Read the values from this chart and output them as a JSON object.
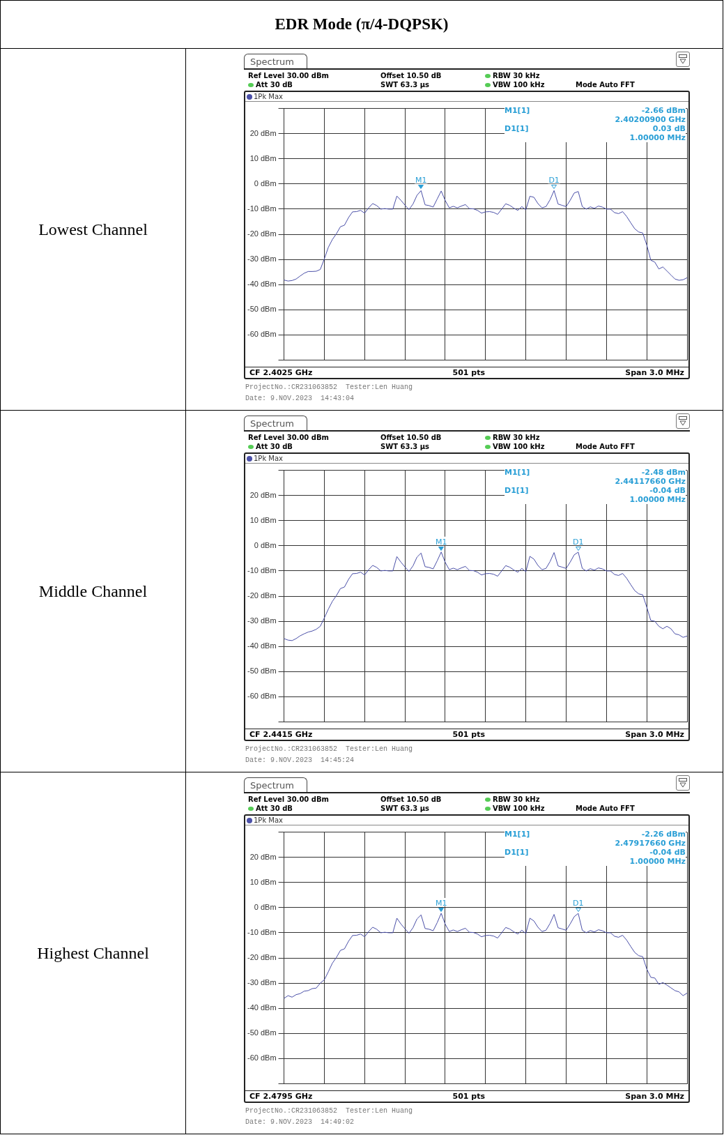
{
  "chart_data": [
    {
      "type": "other",
      "title": "EDR Mode (π/4-DQPSK)"
    },
    {
      "type": "line",
      "title": "Lowest Channel",
      "legend": "top left",
      "grid": true,
      "tick_labels": "y",
      "marker": "none",
      "line_style": "solid",
      "categories": [
        null,
        null,
        null,
        null,
        null,
        null,
        null,
        null,
        null,
        null,
        null,
        null,
        null,
        null,
        null,
        null,
        null,
        null,
        null,
        null,
        null,
        null,
        null,
        null,
        null,
        null,
        null,
        null,
        null,
        null,
        null,
        null,
        null,
        null,
        null,
        null,
        null,
        null,
        null,
        null,
        null,
        null,
        null,
        null,
        null,
        null,
        null,
        null,
        null,
        null,
        null,
        null,
        null,
        null,
        null,
        null,
        null,
        null,
        null,
        null,
        null,
        null,
        null,
        null,
        null,
        null,
        null,
        null,
        null,
        null,
        null,
        null,
        null,
        null,
        null,
        null,
        null,
        null,
        null,
        null,
        null,
        null,
        null,
        null,
        null,
        null,
        null,
        null,
        null,
        null,
        null,
        null,
        null,
        null,
        null,
        null,
        null,
        null,
        null,
        null,
        null
      ],
      "ylim": [
        -70,
        30
      ],
      "yticks": [
        {
          "value": 30,
          "label": null
        },
        {
          "value": 20,
          "label": "20 dBm"
        },
        {
          "value": 10,
          "label": "10 dBm"
        },
        {
          "value": 0,
          "label": "0 dBm"
        },
        {
          "value": -10,
          "label": "-10 dBm"
        },
        {
          "value": -20,
          "label": "-20 dBm"
        },
        {
          "value": -30,
          "label": "-30 dBm"
        },
        {
          "value": -40,
          "label": "-40 dBm"
        },
        {
          "value": -50,
          "label": "-50 dBm"
        },
        {
          "value": -60,
          "label": "-60 dBm"
        },
        {
          "value": -70,
          "label": null
        }
      ],
      "series": [
        {
          "name": "1Pk Max",
          "color": "#4b50a8",
          "values": [
            -38.2,
            -38.6,
            -38.4,
            -37.8,
            -36.6,
            -35.5,
            -34.8,
            -34.8,
            -34.7,
            -34.0,
            -29.8,
            -25.2,
            -22.1,
            -19.8,
            -17.0,
            -16.4,
            -13.4,
            -11.1,
            -11.0,
            -10.5,
            -11.6,
            -9.5,
            -7.8,
            -8.6,
            -10.0,
            -9.8,
            -10.0,
            -10.0,
            -4.8,
            -6.5,
            -8.4,
            -10.2,
            -8.0,
            -4.5,
            -2.66,
            -8.3,
            -8.6,
            -9.2,
            -6.0,
            -2.8,
            -6.6,
            -9.5,
            -8.9,
            -9.5,
            -8.8,
            -8.2,
            -9.8,
            -9.9,
            -10.5,
            -11.6,
            -11.1,
            -11.0,
            -11.3,
            -12.1,
            -10.0,
            -7.9,
            -8.5,
            -9.6,
            -10.5,
            -9.0,
            -10.3,
            -4.9,
            -5.3,
            -7.8,
            -9.5,
            -9.0,
            -6.3,
            -2.63,
            -8.0,
            -8.5,
            -9.0,
            -6.5,
            -3.6,
            -3.0,
            -9.0,
            -10.0,
            -9.1,
            -9.7,
            -8.8,
            -9.2,
            -10.0,
            -10.0,
            -11.4,
            -11.8,
            -11.0,
            -12.9,
            -15.4,
            -17.8,
            -19.1,
            -19.5,
            -24.3,
            -30.3,
            -31.1,
            -33.8,
            -33.0,
            -34.6,
            -36.2,
            -37.8,
            -38.3,
            -38.1,
            -37.3
          ]
        }
      ],
      "annotations": [
        "Spectrum",
        "Ref Level 30.00 dBm",
        "Offset 10.50 dB",
        "RBW 30 kHz",
        "Att 30 dB",
        "SWT 63.3 µs",
        "VBW 100 kHz",
        "Mode Auto FFT",
        "M1[1]",
        "-2.66 dBm",
        "2.40200900 GHz",
        "D1[1]",
        "0.03 dB",
        "1.00000 MHz",
        "CF 2.4025 GHz",
        "501 pts",
        "Span 3.0 MHz",
        "ProjectNo.:CR231063852  Tester:Len Huang",
        "Date: 9.NOV.2023  14:43:04",
        {
          "text": "M1",
          "y": -2.66
        },
        {
          "text": "D1",
          "y": -2.63
        }
      ]
    },
    {
      "type": "line",
      "title": "Middle Channel",
      "legend": "top left",
      "grid": true,
      "tick_labels": "y",
      "marker": "none",
      "line_style": "solid",
      "categories": [
        null,
        null,
        null,
        null,
        null,
        null,
        null,
        null,
        null,
        null,
        null,
        null,
        null,
        null,
        null,
        null,
        null,
        null,
        null,
        null,
        null,
        null,
        null,
        null,
        null,
        null,
        null,
        null,
        null,
        null,
        null,
        null,
        null,
        null,
        null,
        null,
        null,
        null,
        null,
        null,
        null,
        null,
        null,
        null,
        null,
        null,
        null,
        null,
        null,
        null,
        null,
        null,
        null,
        null,
        null,
        null,
        null,
        null,
        null,
        null,
        null,
        null,
        null,
        null,
        null,
        null,
        null,
        null,
        null,
        null,
        null,
        null,
        null,
        null,
        null,
        null,
        null,
        null,
        null,
        null,
        null,
        null,
        null,
        null,
        null,
        null,
        null,
        null,
        null,
        null,
        null,
        null,
        null,
        null,
        null,
        null,
        null,
        null,
        null,
        null,
        null
      ],
      "ylim": [
        -70,
        30
      ],
      "yticks": [
        {
          "value": 30,
          "label": null
        },
        {
          "value": 20,
          "label": "20 dBm"
        },
        {
          "value": 10,
          "label": "10 dBm"
        },
        {
          "value": 0,
          "label": "0 dBm"
        },
        {
          "value": -10,
          "label": "-10 dBm"
        },
        {
          "value": -20,
          "label": "-20 dBm"
        },
        {
          "value": -30,
          "label": "-30 dBm"
        },
        {
          "value": -40,
          "label": "-40 dBm"
        },
        {
          "value": -50,
          "label": "-50 dBm"
        },
        {
          "value": -60,
          "label": "-60 dBm"
        },
        {
          "value": -70,
          "label": null
        }
      ],
      "series": [
        {
          "name": "1Pk Max",
          "color": "#4b50a8",
          "values": [
            -36.9,
            -37.5,
            -37.7,
            -36.9,
            -35.8,
            -35.0,
            -34.3,
            -33.9,
            -33.2,
            -32.0,
            -28.7,
            -25.2,
            -22.1,
            -19.8,
            -17.0,
            -16.4,
            -13.4,
            -11.1,
            -11.0,
            -10.5,
            -11.6,
            -9.5,
            -7.8,
            -8.6,
            -10.0,
            -9.8,
            -10.0,
            -10.0,
            -4.3,
            -6.5,
            -8.4,
            -10.2,
            -8.0,
            -4.5,
            -2.9,
            -8.3,
            -8.6,
            -9.2,
            -6.0,
            -2.48,
            -6.6,
            -9.5,
            -8.9,
            -9.5,
            -8.8,
            -8.2,
            -9.8,
            -9.9,
            -10.5,
            -11.6,
            -11.1,
            -11.0,
            -11.3,
            -12.1,
            -10.0,
            -7.9,
            -8.5,
            -9.6,
            -10.5,
            -9.0,
            -10.3,
            -4.2,
            -5.3,
            -7.8,
            -9.5,
            -9.0,
            -6.3,
            -2.7,
            -8.0,
            -8.5,
            -9.0,
            -6.5,
            -3.6,
            -2.52,
            -9.0,
            -10.0,
            -9.1,
            -9.7,
            -8.8,
            -9.2,
            -10.0,
            -10.0,
            -11.4,
            -11.8,
            -11.0,
            -12.9,
            -15.4,
            -17.8,
            -19.1,
            -19.5,
            -24.4,
            -29.7,
            -30.0,
            -32.0,
            -33.0,
            -32.0,
            -33.0,
            -35.0,
            -35.4,
            -36.4,
            -35.9
          ]
        }
      ],
      "annotations": [
        "Spectrum",
        "Ref Level 30.00 dBm",
        "Offset 10.50 dB",
        "RBW 30 kHz",
        "Att 30 dB",
        "SWT 63.3 µs",
        "VBW 100 kHz",
        "Mode Auto FFT",
        "M1[1]",
        "-2.48 dBm",
        "2.44117660 GHz",
        "D1[1]",
        "-0.04 dB",
        "1.00000 MHz",
        "CF 2.4415 GHz",
        "501 pts",
        "Span 3.0 MHz",
        "ProjectNo.:CR231063852  Tester:Len Huang",
        "Date: 9.NOV.2023  14:45:24",
        {
          "text": "M1",
          "y": -2.48
        },
        {
          "text": "D1",
          "y": -2.52
        }
      ]
    },
    {
      "type": "line",
      "title": "Highest Channel",
      "legend": "top left",
      "grid": true,
      "tick_labels": "y",
      "marker": "none",
      "line_style": "solid",
      "categories": [
        null,
        null,
        null,
        null,
        null,
        null,
        null,
        null,
        null,
        null,
        null,
        null,
        null,
        null,
        null,
        null,
        null,
        null,
        null,
        null,
        null,
        null,
        null,
        null,
        null,
        null,
        null,
        null,
        null,
        null,
        null,
        null,
        null,
        null,
        null,
        null,
        null,
        null,
        null,
        null,
        null,
        null,
        null,
        null,
        null,
        null,
        null,
        null,
        null,
        null,
        null,
        null,
        null,
        null,
        null,
        null,
        null,
        null,
        null,
        null,
        null,
        null,
        null,
        null,
        null,
        null,
        null,
        null,
        null,
        null,
        null,
        null,
        null,
        null,
        null,
        null,
        null,
        null,
        null,
        null,
        null,
        null,
        null,
        null,
        null,
        null,
        null,
        null,
        null,
        null,
        null,
        null,
        null,
        null,
        null,
        null,
        null,
        null,
        null,
        null,
        null
      ],
      "ylim": [
        -70,
        30
      ],
      "yticks": [
        {
          "value": 30,
          "label": null
        },
        {
          "value": 20,
          "label": "20 dBm"
        },
        {
          "value": 10,
          "label": "10 dBm"
        },
        {
          "value": 0,
          "label": "0 dBm"
        },
        {
          "value": -10,
          "label": "-10 dBm"
        },
        {
          "value": -20,
          "label": "-20 dBm"
        },
        {
          "value": -30,
          "label": "-30 dBm"
        },
        {
          "value": -40,
          "label": "-40 dBm"
        },
        {
          "value": -50,
          "label": "-50 dBm"
        },
        {
          "value": -60,
          "label": "-60 dBm"
        },
        {
          "value": -70,
          "label": null
        }
      ],
      "series": [
        {
          "name": "1Pk Max",
          "color": "#4b50a8",
          "values": [
            -36.1,
            -35.0,
            -35.6,
            -34.6,
            -34.2,
            -33.2,
            -33.0,
            -32.2,
            -32.0,
            -30.0,
            -28.7,
            -25.5,
            -22.1,
            -19.8,
            -17.0,
            -16.4,
            -13.4,
            -11.1,
            -11.0,
            -10.5,
            -11.6,
            -9.5,
            -7.8,
            -8.6,
            -10.0,
            -9.8,
            -10.0,
            -10.0,
            -4.2,
            -6.5,
            -8.4,
            -10.2,
            -8.0,
            -4.5,
            -2.9,
            -8.3,
            -8.6,
            -9.2,
            -6.0,
            -2.26,
            -6.6,
            -9.5,
            -8.9,
            -9.5,
            -8.8,
            -8.2,
            -9.8,
            -9.9,
            -10.5,
            -11.6,
            -11.1,
            -11.0,
            -11.3,
            -12.1,
            -10.0,
            -7.9,
            -8.5,
            -9.6,
            -10.5,
            -9.0,
            -10.3,
            -4.2,
            -5.3,
            -7.8,
            -9.5,
            -9.0,
            -6.3,
            -2.7,
            -8.0,
            -8.5,
            -9.0,
            -6.5,
            -3.6,
            -2.3,
            -9.0,
            -10.0,
            -9.1,
            -9.7,
            -8.8,
            -9.2,
            -10.0,
            -10.0,
            -11.4,
            -11.8,
            -11.0,
            -12.9,
            -15.4,
            -17.8,
            -19.1,
            -19.5,
            -24.4,
            -27.7,
            -28.0,
            -30.5,
            -29.8,
            -30.8,
            -31.9,
            -33.0,
            -33.5,
            -35.0,
            -34.0
          ]
        }
      ],
      "annotations": [
        "Spectrum",
        "Ref Level 30.00 dBm",
        "Offset 10.50 dB",
        "RBW 30 kHz",
        "Att 30 dB",
        "SWT 63.3 µs",
        "VBW 100 kHz",
        "Mode Auto FFT",
        "M1[1]",
        "-2.26 dBm",
        "2.47917660 GHz",
        "D1[1]",
        "-0.04 dB",
        "1.00000 MHz",
        "CF 2.4795 GHz",
        "501 pts",
        "Span 3.0 MHz",
        "ProjectNo.:CR231063852  Tester:Len Huang",
        "Date: 9.NOV.2023  14:49:02",
        {
          "text": "M1",
          "y": -2.26
        },
        {
          "text": "D1",
          "y": -2.3
        }
      ]
    }
  ]
}
